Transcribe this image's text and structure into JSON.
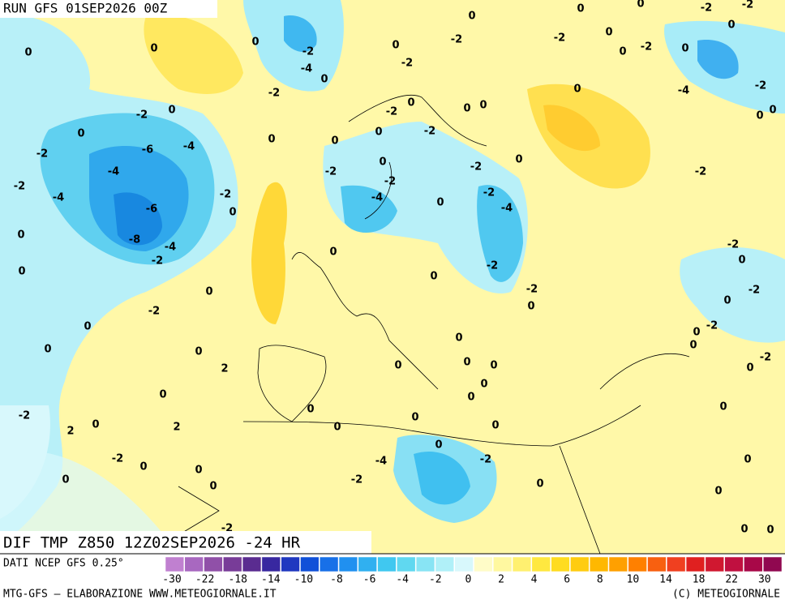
{
  "header": {
    "run": "RUN GFS 01SEP2026 00Z"
  },
  "footer": {
    "field": "DIF TMP Z850 12Z02SEP2026 -24 HR",
    "source": "DATI NCEP GFS 0.25°",
    "credit": "MTG-GFS – ELABORAZIONE WWW.METEOGIORNALE.IT",
    "copyright": "(C) METEOGIORNALE"
  },
  "legend": {
    "ticks": [
      -30,
      -22,
      -18,
      -14,
      -10,
      -8,
      -6,
      -4,
      -2,
      0,
      2,
      4,
      6,
      8,
      10,
      14,
      18,
      22,
      30
    ],
    "colors": [
      "#c080d0",
      "#a868c0",
      "#9050a8",
      "#783c98",
      "#5a2c90",
      "#3828a0",
      "#2038c0",
      "#1050d8",
      "#1870e8",
      "#2090f0",
      "#30b0f0",
      "#40c8f0",
      "#60d8f0",
      "#88e4f4",
      "#b0f0f8",
      "#d8f8fc",
      "#fffcc8",
      "#fff8a0",
      "#fff070",
      "#ffe840",
      "#ffdc20",
      "#ffcc10",
      "#ffb800",
      "#ffa000",
      "#ff8000",
      "#f86010",
      "#f04020",
      "#e02020",
      "#d01830",
      "#c01040",
      "#a80848",
      "#900850"
    ]
  },
  "map_labels": [
    0,
    0,
    0,
    -2,
    0,
    -2,
    -6,
    -4,
    -4,
    -2,
    -4,
    -6,
    -2,
    0,
    -8,
    -4,
    -2,
    0,
    0,
    0,
    -2,
    0,
    0,
    0,
    2,
    0,
    -2,
    2,
    0,
    2,
    -2,
    0,
    0,
    0,
    0,
    -2,
    -4,
    0,
    -2,
    0,
    0,
    0,
    -2,
    0,
    -2,
    0,
    -2,
    -2,
    0,
    0,
    -2,
    0,
    0,
    0,
    -2,
    -4,
    0,
    -2,
    -2,
    -4,
    0,
    0,
    0,
    -2,
    -2,
    0,
    0,
    0,
    0,
    0,
    0,
    0,
    0,
    0,
    0,
    0,
    0,
    -4,
    -2,
    -2,
    0,
    0,
    -2,
    0,
    0,
    -2,
    0,
    0,
    -4,
    -2,
    0,
    -2,
    0,
    0,
    -2,
    0,
    -2,
    0,
    -2,
    0,
    0,
    0,
    -2,
    0,
    0,
    0,
    0,
    0,
    -2,
    -2,
    -2,
    0,
    -2
  ]
}
